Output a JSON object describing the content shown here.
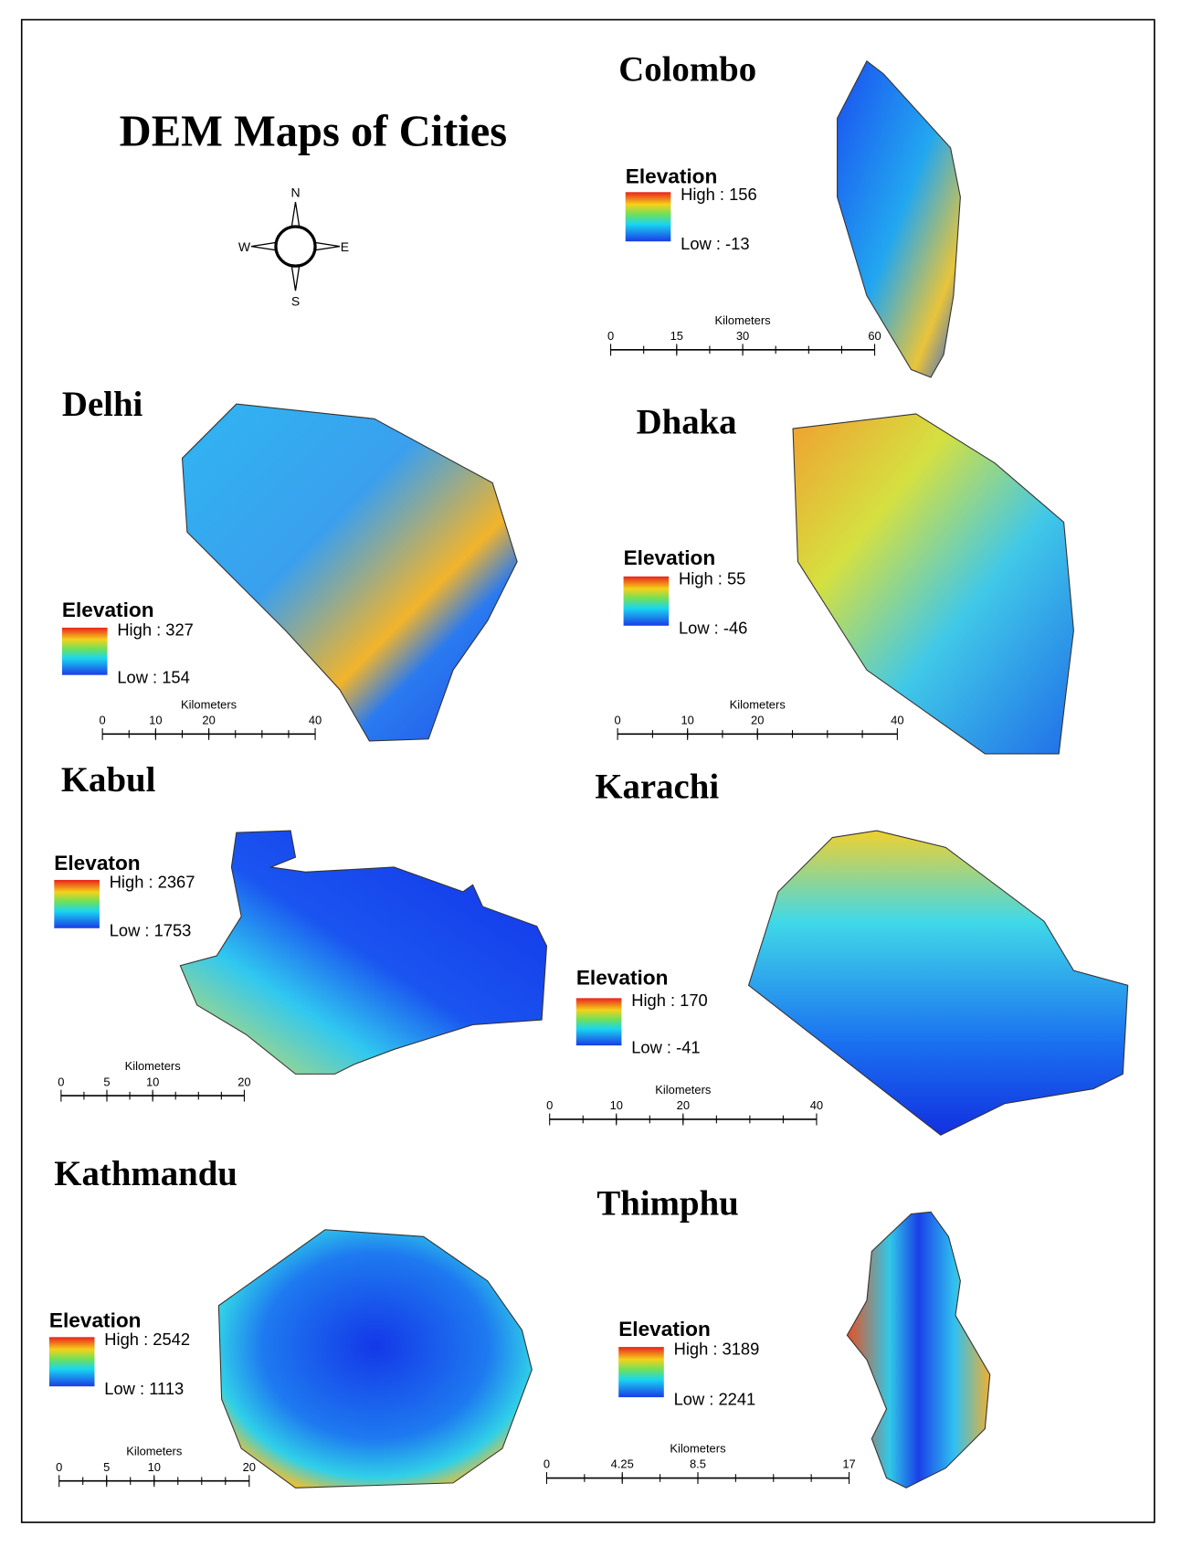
{
  "title": "DEM Maps of Cities",
  "compass": {
    "n": "N",
    "e": "E",
    "s": "S",
    "w": "W"
  },
  "maps": [
    {
      "name": "Colombo",
      "legend_title": "Elevation",
      "high": "High : 156",
      "low": "Low : -13",
      "scale_unit": "Kilometers",
      "scale_ticks": [
        0,
        15,
        30,
        60
      ]
    },
    {
      "name": "Delhi",
      "legend_title": "Elevation",
      "high": "High : 327",
      "low": "Low : 154",
      "scale_unit": "Kilometers",
      "scale_ticks": [
        0,
        10,
        20,
        40
      ]
    },
    {
      "name": "Dhaka",
      "legend_title": "Elevation",
      "high": "High : 55",
      "low": "Low : -46",
      "scale_unit": "Kilometers",
      "scale_ticks": [
        0,
        10,
        20,
        40
      ]
    },
    {
      "name": "Kabul",
      "legend_title": "Elevaton",
      "high": "High : 2367",
      "low": "Low : 1753",
      "scale_unit": "Kilometers",
      "scale_ticks": [
        0,
        5,
        10,
        20
      ]
    },
    {
      "name": "Karachi",
      "legend_title": "Elevation",
      "high": "High : 170",
      "low": "Low : -41",
      "scale_unit": "Kilometers",
      "scale_ticks": [
        0,
        10,
        20,
        40
      ]
    },
    {
      "name": "Kathmandu",
      "legend_title": "Elevation",
      "high": "High : 2542",
      "low": "Low : 1113",
      "scale_unit": "Kilometers",
      "scale_ticks": [
        0,
        5,
        10,
        20
      ]
    },
    {
      "name": "Thimphu",
      "legend_title": "Elevation",
      "high": "High : 3189",
      "low": "Low : 2241",
      "scale_unit": "Kilometers",
      "scale_ticks": [
        0,
        4.25,
        8.5,
        17
      ]
    }
  ]
}
